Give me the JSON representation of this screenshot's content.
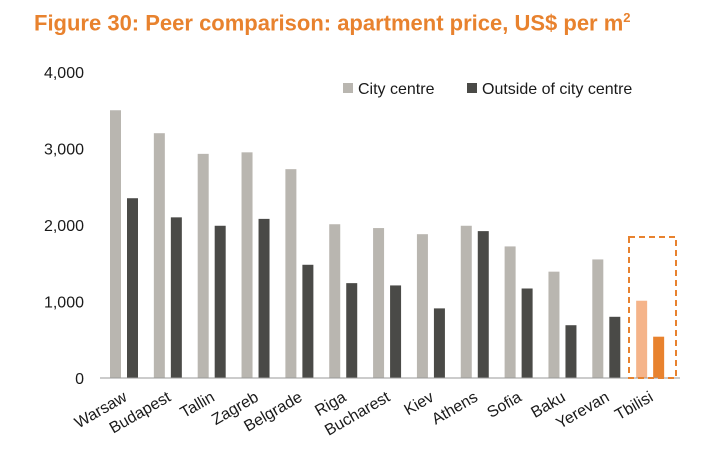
{
  "title": "Figure 30: Peer comparison: apartment price, US$ per m",
  "title_superscript": "2",
  "chart_data": {
    "type": "bar",
    "title": "Figure 30: Peer comparison: apartment price, US$ per m2",
    "xlabel": "",
    "ylabel": "",
    "ylim": [
      0,
      4000
    ],
    "yticks": [
      0,
      1000,
      2000,
      3000,
      4000
    ],
    "ytick_labels": [
      "0",
      "1,000",
      "2,000",
      "3,000",
      "4,000"
    ],
    "grid": false,
    "legend_position": "top-right",
    "categories": [
      "Warsaw",
      "Budapest",
      "Tallin",
      "Zagreb",
      "Belgrade",
      "Riga",
      "Bucharest",
      "Kiev",
      "Athens",
      "Sofia",
      "Baku",
      "Yerevan",
      "Tbilisi"
    ],
    "series": [
      {
        "name": "City centre",
        "values": [
          3500,
          3200,
          2930,
          2950,
          2730,
          2010,
          1960,
          1880,
          1990,
          1720,
          1390,
          1550,
          1010
        ]
      },
      {
        "name": "Outside of city centre",
        "values": [
          2350,
          2100,
          1990,
          2080,
          1480,
          1240,
          1210,
          910,
          1920,
          1170,
          690,
          800,
          540
        ]
      }
    ],
    "colors": {
      "city_centre": "#b9b6b0",
      "outside": "#4a4a47",
      "highlight_city_centre": "#f5b48a",
      "highlight_outside": "#e8822e",
      "highlight_box": "#e8822e",
      "axis": "#999999",
      "text": "#1a1a1a"
    },
    "highlight_category": "Tbilisi"
  }
}
